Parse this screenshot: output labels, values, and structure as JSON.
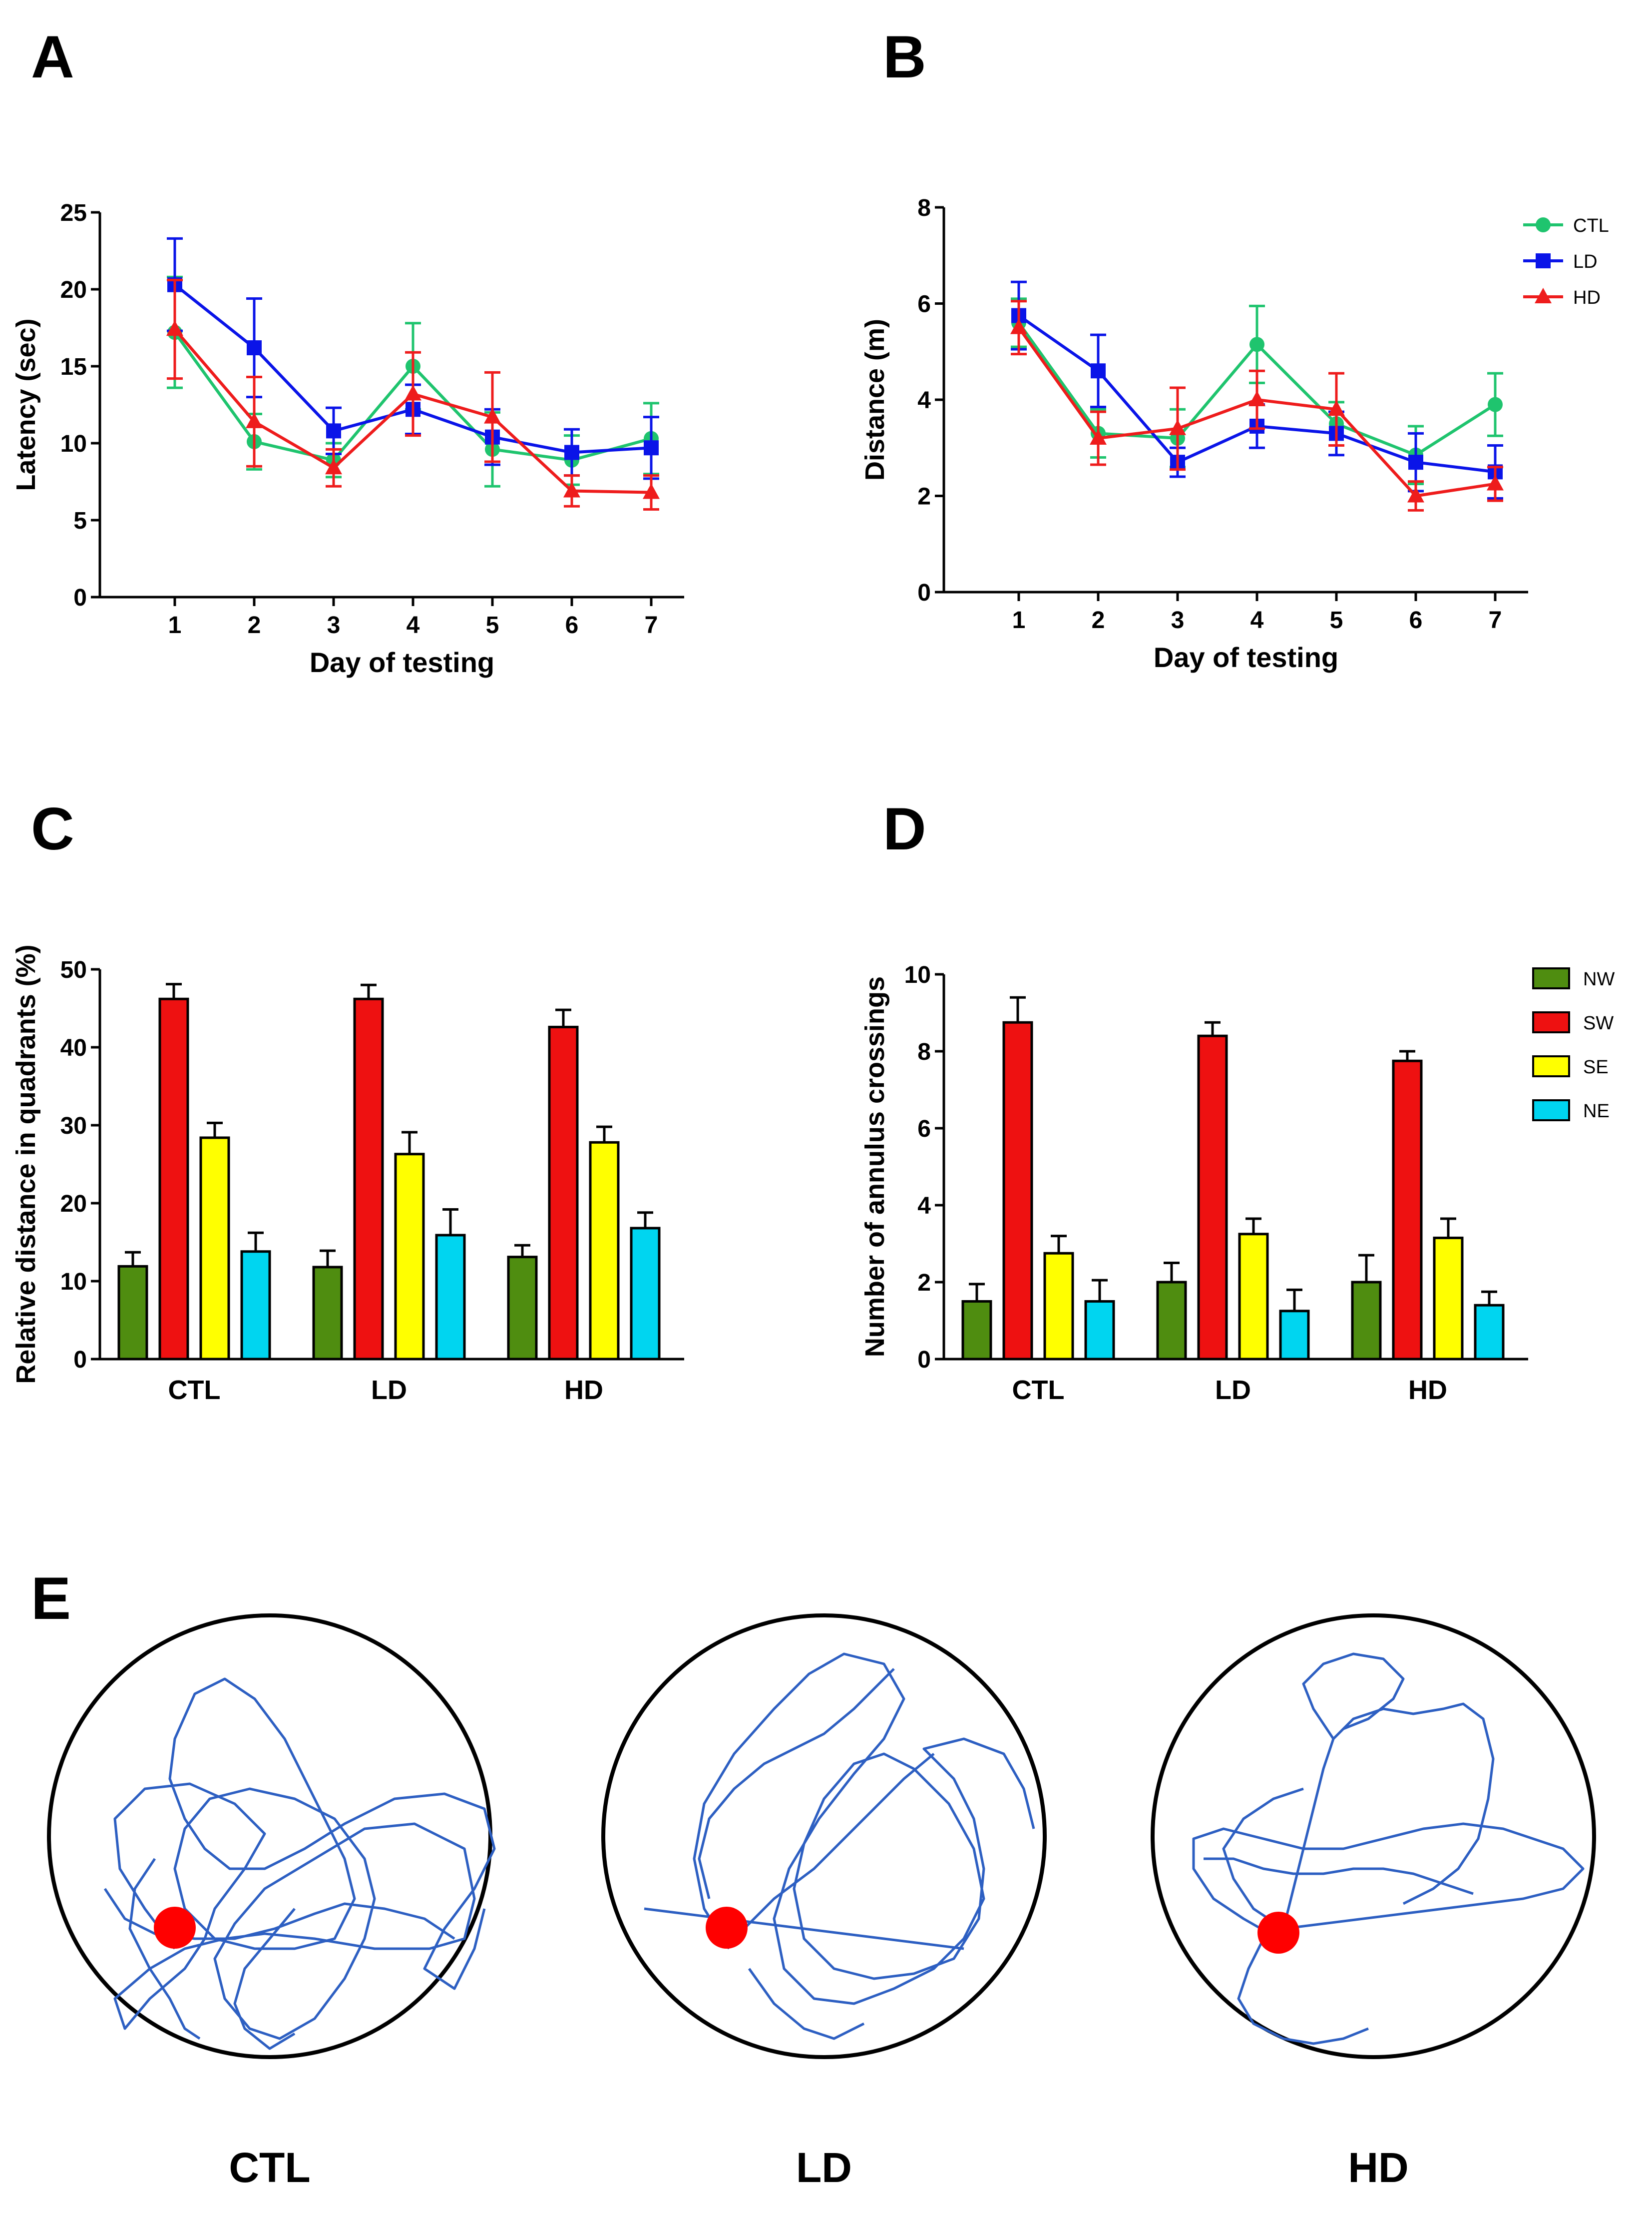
{
  "colors": {
    "CTL": "#1fc46e",
    "LD": "#0a14e8",
    "HD": "#ee1c1c",
    "NW": "#4f8d10",
    "SW": "#ee1111",
    "SE": "#ffff00",
    "NE": "#00d5f0",
    "path": "#2d5fc2",
    "platform": "#ff0000"
  },
  "panels": {
    "A": "A",
    "B": "B",
    "C": "C",
    "D": "D",
    "E": "E"
  },
  "chart_data": [
    {
      "id": "A",
      "type": "line",
      "xlabel": "Day of testing",
      "ylabel": "Latency (sec)",
      "x": [
        1,
        2,
        3,
        4,
        5,
        6,
        7
      ],
      "ylim": [
        0,
        25
      ],
      "yticks": [
        0,
        5,
        10,
        15,
        20,
        25
      ],
      "series": [
        {
          "name": "CTL",
          "marker": "circle",
          "values": [
            17.2,
            10.1,
            8.9,
            15.0,
            9.6,
            8.9,
            10.3
          ],
          "errors": [
            3.6,
            1.8,
            1.1,
            2.8,
            2.4,
            1.6,
            2.3
          ]
        },
        {
          "name": "LD",
          "marker": "square",
          "values": [
            20.3,
            16.2,
            10.8,
            12.2,
            10.4,
            9.4,
            9.7
          ],
          "errors": [
            3.0,
            3.2,
            1.5,
            1.6,
            1.8,
            1.5,
            2.0
          ]
        },
        {
          "name": "HD",
          "marker": "triangle",
          "values": [
            17.4,
            11.4,
            8.4,
            13.2,
            11.7,
            6.9,
            6.8
          ],
          "errors": [
            3.2,
            2.9,
            1.2,
            2.7,
            2.9,
            1.0,
            1.1
          ]
        }
      ]
    },
    {
      "id": "B",
      "type": "line",
      "xlabel": "Day of testing",
      "ylabel": "Distance (m)",
      "x": [
        1,
        2,
        3,
        4,
        5,
        6,
        7
      ],
      "ylim": [
        0,
        8
      ],
      "yticks": [
        0,
        2,
        4,
        6,
        8
      ],
      "legend": [
        "CTL",
        "LD",
        "HD"
      ],
      "series": [
        {
          "name": "CTL",
          "marker": "circle",
          "values": [
            5.6,
            3.3,
            3.2,
            5.15,
            3.5,
            2.85,
            3.9
          ],
          "errors": [
            0.5,
            0.5,
            0.6,
            0.8,
            0.45,
            0.6,
            0.65
          ]
        },
        {
          "name": "LD",
          "marker": "square",
          "values": [
            5.75,
            4.6,
            2.7,
            3.45,
            3.3,
            2.7,
            2.5
          ],
          "errors": [
            0.7,
            0.75,
            0.3,
            0.45,
            0.45,
            0.6,
            0.55
          ]
        },
        {
          "name": "HD",
          "marker": "triangle",
          "values": [
            5.5,
            3.2,
            3.4,
            4.0,
            3.8,
            2.0,
            2.25
          ],
          "errors": [
            0.55,
            0.55,
            0.85,
            0.6,
            0.75,
            0.3,
            0.35
          ]
        }
      ]
    },
    {
      "id": "C",
      "type": "bar",
      "ylabel": "Relative distance in quadrants (%)",
      "categories": [
        "CTL",
        "LD",
        "HD"
      ],
      "ylim": [
        0,
        50
      ],
      "yticks": [
        0,
        10,
        20,
        30,
        40,
        50
      ],
      "series": [
        {
          "name": "NW",
          "values": [
            11.9,
            11.8,
            13.1
          ],
          "errors": [
            1.8,
            2.1,
            1.5
          ]
        },
        {
          "name": "SW",
          "values": [
            46.2,
            46.2,
            42.6
          ],
          "errors": [
            1.9,
            1.8,
            2.2
          ]
        },
        {
          "name": "SE",
          "values": [
            28.4,
            26.3,
            27.8
          ],
          "errors": [
            1.9,
            2.8,
            2.0
          ]
        },
        {
          "name": "NE",
          "values": [
            13.8,
            15.9,
            16.8
          ],
          "errors": [
            2.4,
            3.3,
            2.0
          ]
        }
      ]
    },
    {
      "id": "D",
      "type": "bar",
      "ylabel": "Number of annulus crossings",
      "categories": [
        "CTL",
        "LD",
        "HD"
      ],
      "ylim": [
        0,
        10
      ],
      "yticks": [
        0,
        2,
        4,
        6,
        8,
        10
      ],
      "legend": [
        "NW",
        "SW",
        "SE",
        "NE"
      ],
      "series": [
        {
          "name": "NW",
          "values": [
            1.5,
            2.0,
            2.0
          ],
          "errors": [
            0.45,
            0.5,
            0.7
          ]
        },
        {
          "name": "SW",
          "values": [
            8.75,
            8.4,
            7.75
          ],
          "errors": [
            0.65,
            0.35,
            0.25
          ]
        },
        {
          "name": "SE",
          "values": [
            2.75,
            3.25,
            3.15
          ],
          "errors": [
            0.45,
            0.4,
            0.5
          ]
        },
        {
          "name": "NE",
          "values": [
            1.5,
            1.25,
            1.4
          ],
          "errors": [
            0.55,
            0.55,
            0.35
          ]
        }
      ]
    }
  ],
  "trajectories": {
    "labels": [
      "CTL",
      "LD",
      "HD"
    ]
  }
}
